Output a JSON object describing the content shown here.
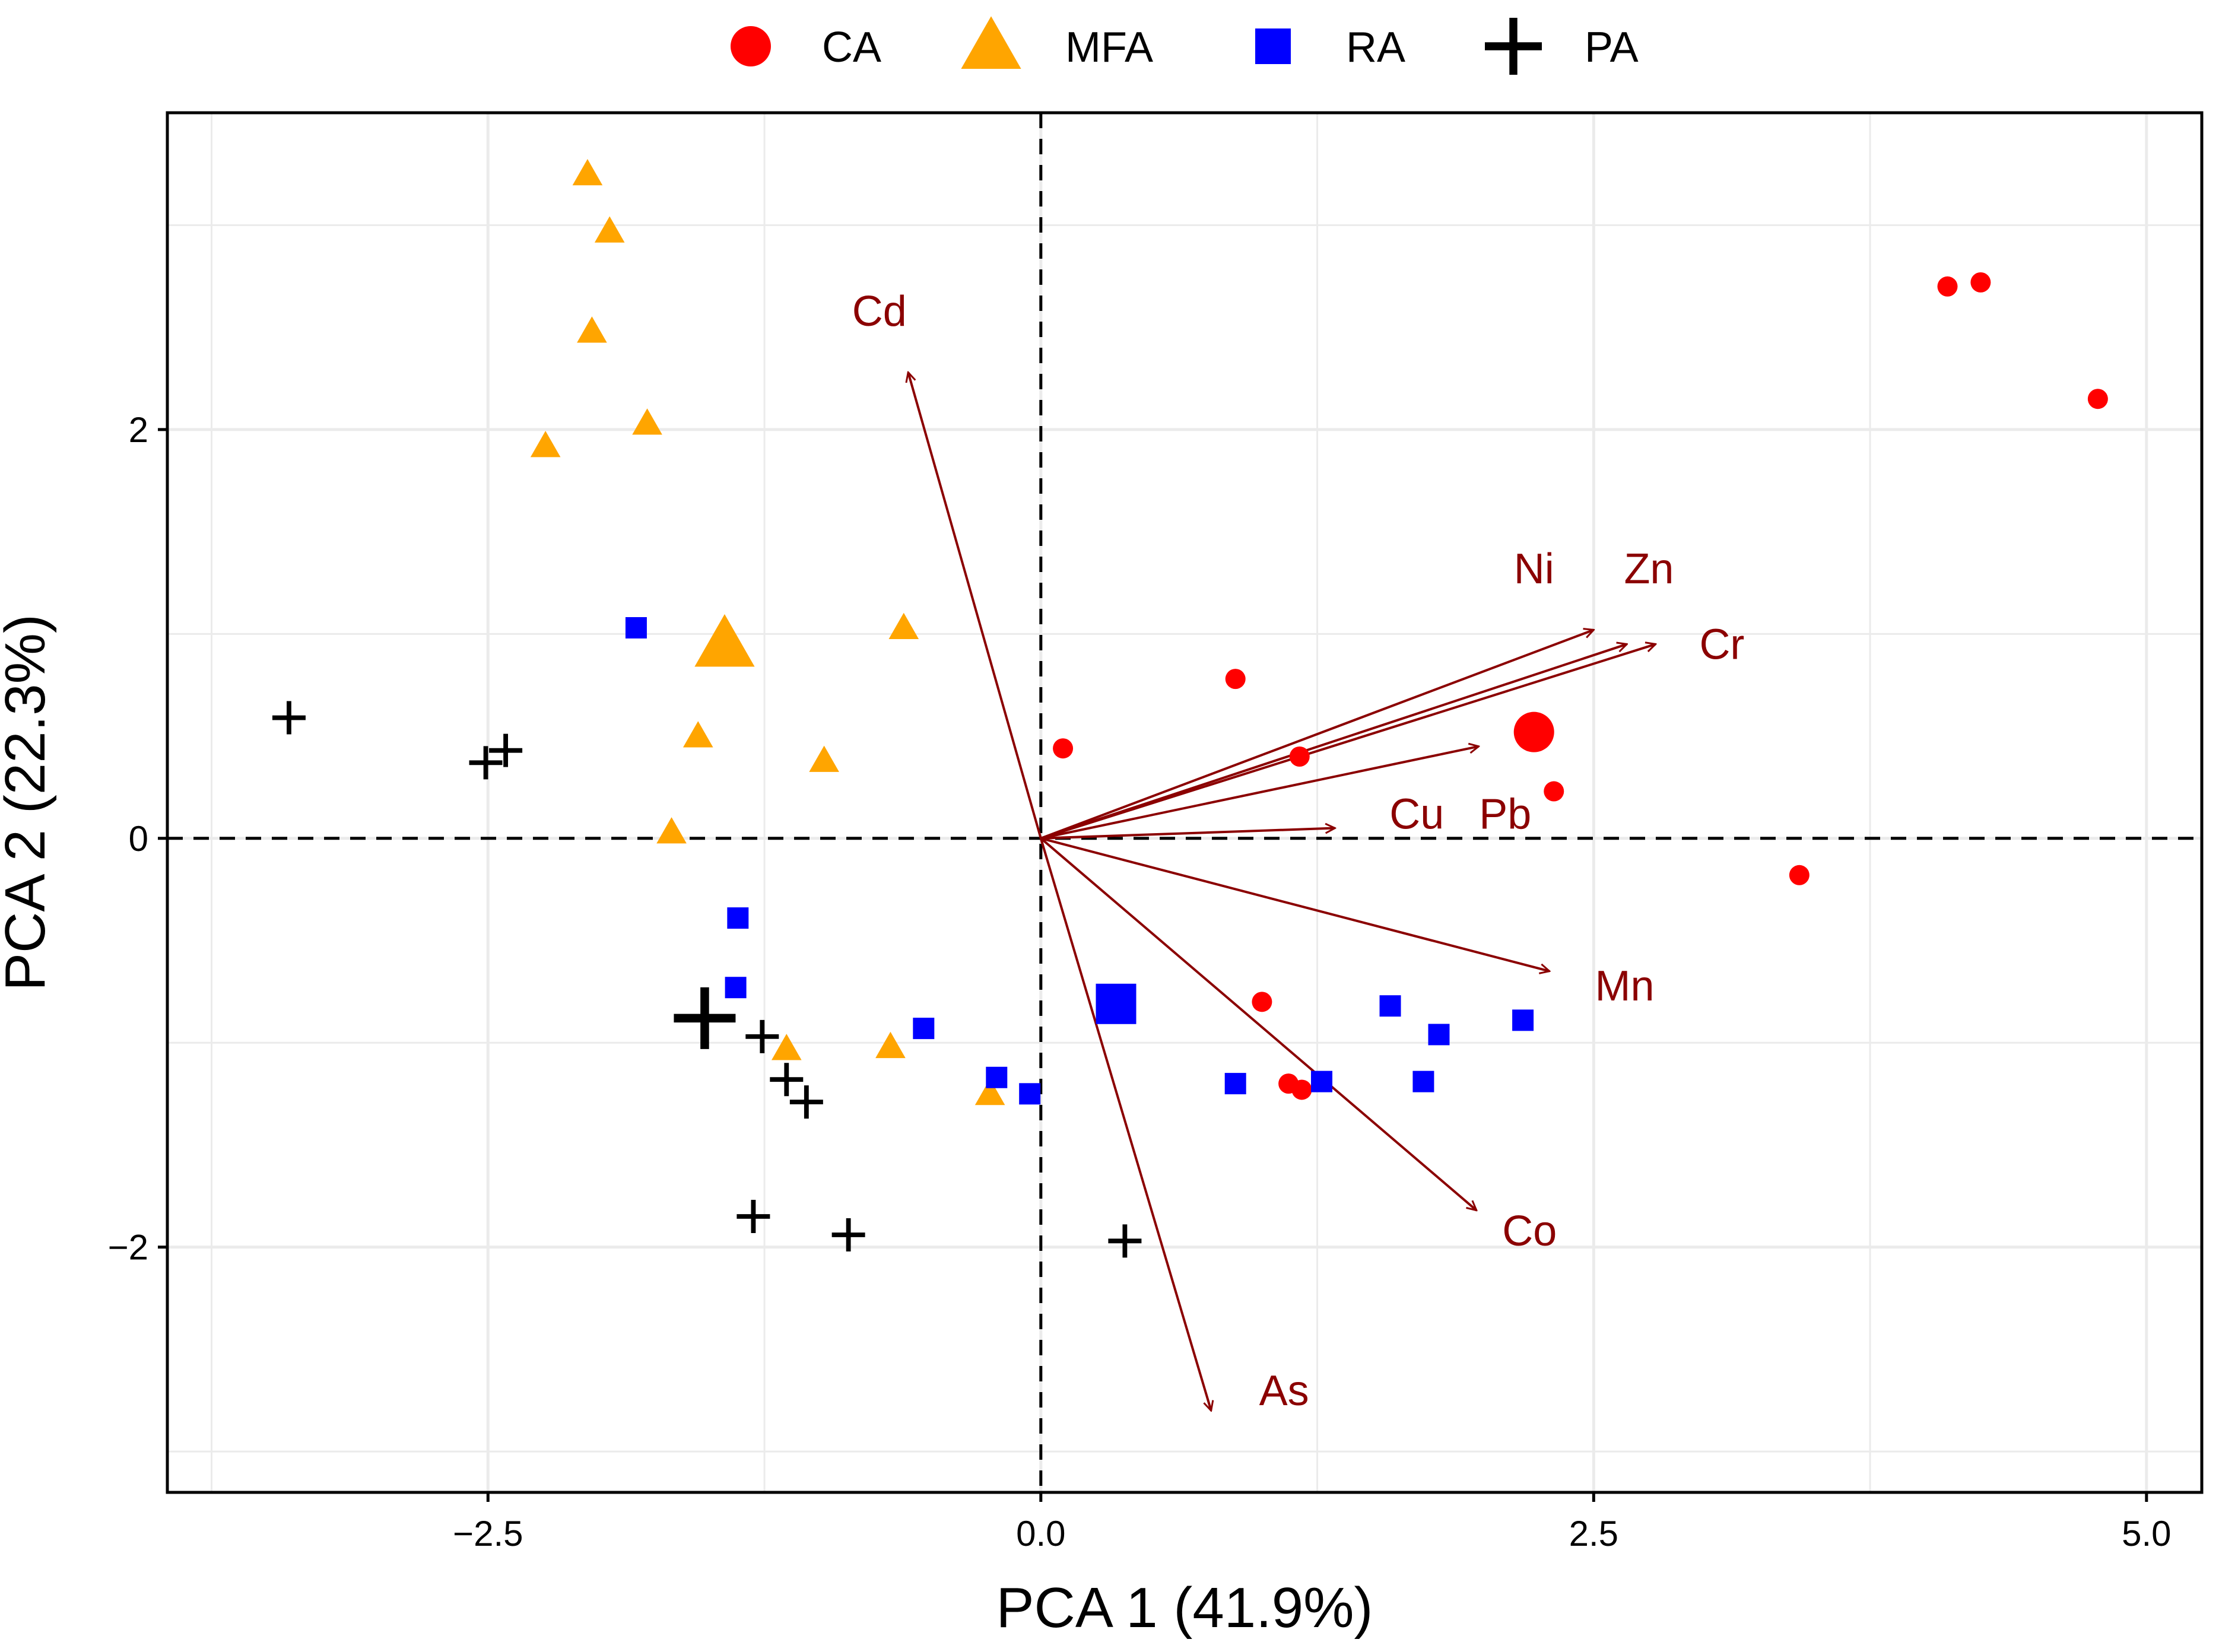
{
  "chart_data": {
    "type": "scatter",
    "subtype": "pca-biplot",
    "xlabel": "PCA 1 (41.9%)",
    "ylabel": "PCA 2 (22.3%)",
    "xlim": [
      -3.95,
      5.25
    ],
    "ylim": [
      -3.2,
      3.55
    ],
    "x_ticks": [
      -2.5,
      0.0,
      2.5,
      5.0
    ],
    "x_tick_labels": [
      "−2.5",
      "0.0",
      "2.5",
      "5.0"
    ],
    "y_ticks": [
      -2,
      0,
      2
    ],
    "y_tick_labels": [
      "−2",
      "0",
      "2"
    ],
    "x_minor_grid": [
      -3.75,
      -1.25,
      1.25,
      3.75
    ],
    "y_minor_grid": [
      -3,
      -1,
      1,
      3
    ],
    "grid": true,
    "reference_lines": {
      "x": 0,
      "y": 0,
      "style": "dashed"
    },
    "legend_position": "top-center",
    "colors": {
      "CA": "#ff0000",
      "MFA": "#ffa500",
      "RA": "#0000ff",
      "PA": "#000000",
      "loadings": "#8b0000",
      "grid": "#ebebeb"
    },
    "series": [
      {
        "name": "CA",
        "marker": "circle",
        "points": [
          [
            4.1,
            2.7
          ],
          [
            4.25,
            2.72
          ],
          [
            4.78,
            2.15
          ],
          [
            0.88,
            0.78
          ],
          [
            0.1,
            0.44
          ],
          [
            1.17,
            0.4
          ],
          [
            2.32,
            0.23
          ],
          [
            3.43,
            -0.18
          ],
          [
            1.0,
            -0.8
          ],
          [
            1.12,
            -1.2
          ],
          [
            1.18,
            -1.23
          ]
        ],
        "centroid": [
          2.23,
          0.52
        ]
      },
      {
        "name": "MFA",
        "marker": "triangle",
        "points": [
          [
            -2.05,
            3.25
          ],
          [
            -1.95,
            2.97
          ],
          [
            -2.03,
            2.48
          ],
          [
            -1.78,
            2.03
          ],
          [
            -2.24,
            1.92
          ],
          [
            -0.62,
            1.03
          ],
          [
            -1.55,
            0.5
          ],
          [
            -0.98,
            0.38
          ],
          [
            -1.67,
            0.03
          ],
          [
            -1.15,
            -1.03
          ],
          [
            -0.68,
            -1.02
          ],
          [
            -0.23,
            -1.25
          ]
        ],
        "centroid": [
          -1.43,
          0.95
        ]
      },
      {
        "name": "RA",
        "marker": "square",
        "points": [
          [
            -1.83,
            1.03
          ],
          [
            -1.37,
            -0.39
          ],
          [
            -1.38,
            -0.73
          ],
          [
            -0.53,
            -0.93
          ],
          [
            -0.2,
            -1.17
          ],
          [
            -0.05,
            -1.25
          ],
          [
            0.88,
            -1.2
          ],
          [
            1.27,
            -1.19
          ],
          [
            1.58,
            -0.82
          ],
          [
            1.73,
            -1.19
          ],
          [
            1.8,
            -0.96
          ],
          [
            2.18,
            -0.89
          ]
        ],
        "centroid": [
          0.34,
          -0.81
        ]
      },
      {
        "name": "PA",
        "marker": "plus",
        "points": [
          [
            -3.4,
            0.59
          ],
          [
            -2.51,
            0.37
          ],
          [
            -2.42,
            0.43
          ],
          [
            -1.26,
            -0.97
          ],
          [
            -1.15,
            -1.18
          ],
          [
            -1.06,
            -1.29
          ],
          [
            -1.3,
            -1.85
          ],
          [
            -0.87,
            -1.94
          ],
          [
            0.38,
            -1.97
          ]
        ],
        "centroid": [
          -1.52,
          -0.88
        ]
      }
    ],
    "loadings": [
      {
        "name": "Cd",
        "x": -0.6,
        "y": 2.28
      },
      {
        "name": "Ni",
        "x": 2.5,
        "y": 1.02
      },
      {
        "name": "Zn",
        "x": 2.65,
        "y": 0.95
      },
      {
        "name": "Cr",
        "x": 2.78,
        "y": 0.95
      },
      {
        "name": "Pb",
        "x": 1.98,
        "y": 0.45
      },
      {
        "name": "Cu",
        "x": 1.33,
        "y": 0.05
      },
      {
        "name": "Mn",
        "x": 2.3,
        "y": -0.65
      },
      {
        "name": "Co",
        "x": 1.97,
        "y": -1.82
      },
      {
        "name": "As",
        "x": 0.77,
        "y": -2.8
      }
    ]
  }
}
